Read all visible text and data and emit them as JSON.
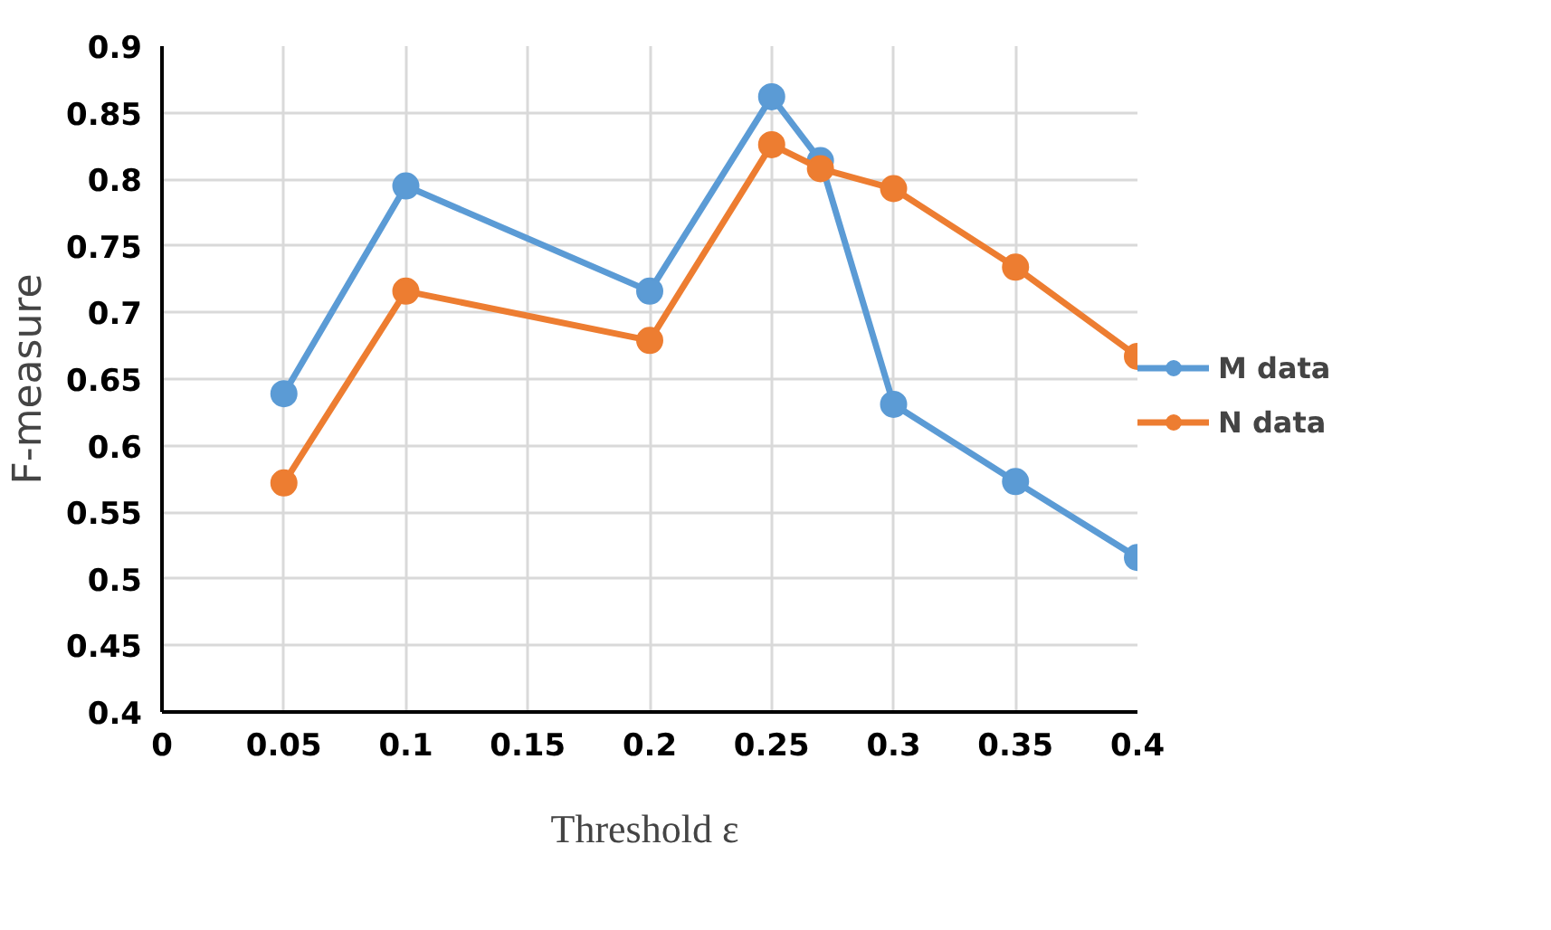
{
  "chart_data": {
    "type": "line",
    "xlabel": "Threshold  ε",
    "ylabel": "F-measure",
    "x": [
      0.05,
      0.1,
      0.2,
      0.25,
      0.27,
      0.3,
      0.35,
      0.4
    ],
    "series": [
      {
        "name": "M data",
        "color": "#5b9bd5",
        "values": [
          0.639,
          0.795,
          0.716,
          0.862,
          0.814,
          0.631,
          0.573,
          0.516
        ]
      },
      {
        "name": "N data",
        "color": "#ed7d31",
        "values": [
          0.572,
          0.716,
          0.679,
          0.826,
          0.808,
          0.793,
          0.734,
          0.667
        ]
      }
    ],
    "xlim": [
      0,
      0.4
    ],
    "xticks": [
      0,
      0.05,
      0.1,
      0.15,
      0.2,
      0.25,
      0.3,
      0.35,
      0.4
    ],
    "ylim": [
      0.4,
      0.9
    ],
    "yticks": [
      0.4,
      0.45,
      0.5,
      0.55,
      0.6,
      0.65,
      0.7,
      0.75,
      0.8,
      0.85,
      0.9
    ],
    "grid": true,
    "legend": "right",
    "marker": "circle",
    "line_style": "solid"
  }
}
